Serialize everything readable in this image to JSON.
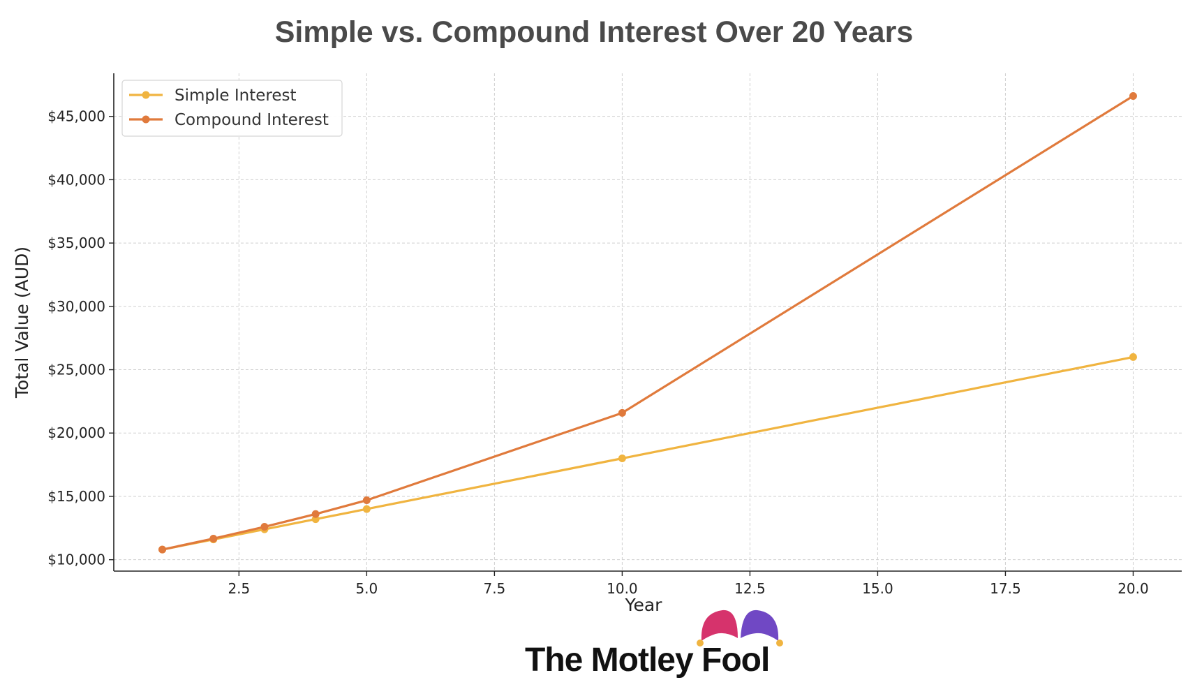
{
  "chart_data": {
    "type": "line",
    "title": "Simple vs. Compound Interest Over 20 Years",
    "xlabel": "Year",
    "ylabel": "Total Value (AUD)",
    "xlim": [
      0.05,
      20.95
    ],
    "ylim": [
      9100,
      48400
    ],
    "x_ticks": [
      2.5,
      5.0,
      7.5,
      10.0,
      12.5,
      15.0,
      17.5,
      20.0
    ],
    "x_tick_labels": [
      "2.5",
      "5.0",
      "7.5",
      "10.0",
      "12.5",
      "15.0",
      "17.5",
      "20.0"
    ],
    "y_ticks": [
      10000,
      15000,
      20000,
      25000,
      30000,
      35000,
      40000,
      45000
    ],
    "y_tick_labels": [
      "$10,000",
      "$15,000",
      "$20,000",
      "$25,000",
      "$30,000",
      "$35,000",
      "$40,000",
      "$45,000"
    ],
    "grid": true,
    "legend_position": "top-left",
    "x": [
      1,
      2,
      3,
      4,
      5,
      10,
      20
    ],
    "series": [
      {
        "name": "Simple Interest",
        "color": "#f0b440",
        "values": [
          10800,
          11600,
          12400,
          13200,
          14000,
          18000,
          26000
        ]
      },
      {
        "name": "Compound Interest",
        "color": "#e07a3c",
        "values": [
          10800,
          11664,
          12597,
          13605,
          14693,
          21589,
          46610
        ]
      }
    ]
  },
  "logo": {
    "text": "The Motley Fool",
    "colors": {
      "left_cap": "#d6336c",
      "right_cap": "#7048c4",
      "bells": "#f0b440"
    }
  }
}
